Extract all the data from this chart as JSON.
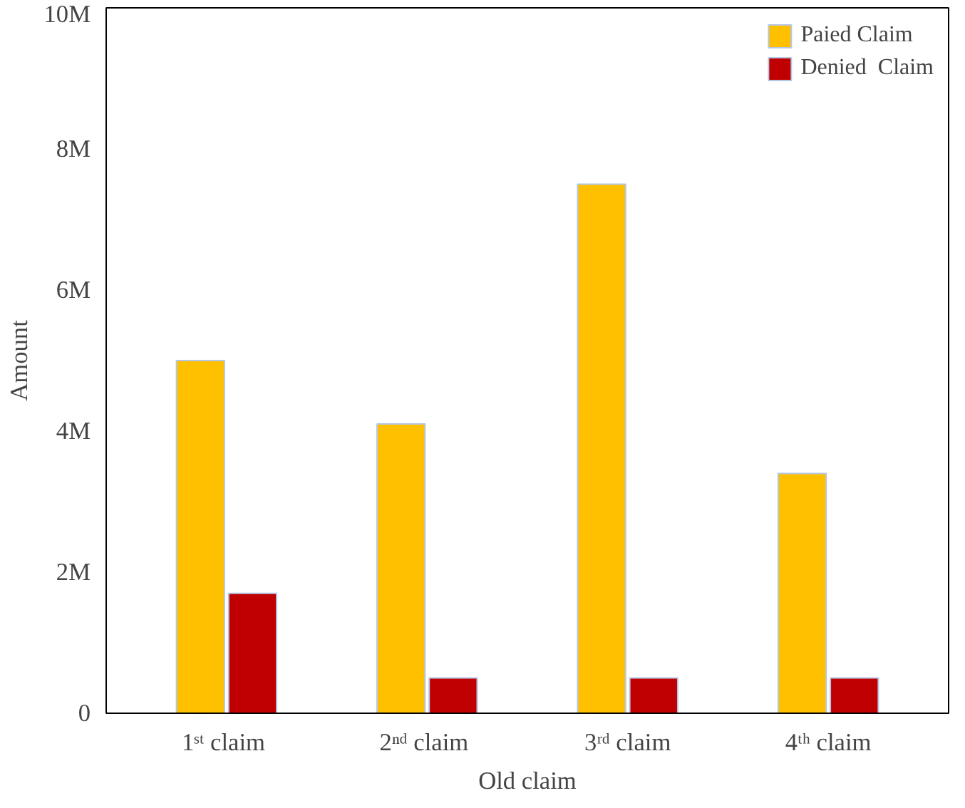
{
  "chart_data": {
    "type": "bar",
    "xlabel": "Old claim",
    "ylabel": "Amount",
    "categories": [
      "1ˢᵗ  claim",
      "2ⁿᵈ  claim",
      "3ʳᵈ claim",
      "4ᵗʰ claim"
    ],
    "series": [
      {
        "name": "Paied Claim",
        "color": "#ffc000",
        "values": [
          5.0,
          4.1,
          7.5,
          3.4
        ]
      },
      {
        "name": "Denied  Claim",
        "color": "#c00000",
        "values": [
          1.7,
          0.5,
          0.5,
          0.5
        ]
      }
    ],
    "ylim": [
      0,
      10
    ],
    "yticks": [
      {
        "value": 0,
        "label": "0"
      },
      {
        "value": 2,
        "label": "2M"
      },
      {
        "value": 4,
        "label": "4M"
      },
      {
        "value": 6,
        "label": "6M"
      },
      {
        "value": 8,
        "label": "8M"
      },
      {
        "value": 10,
        "label": "10M"
      }
    ],
    "grid": false,
    "legend": "top right"
  }
}
